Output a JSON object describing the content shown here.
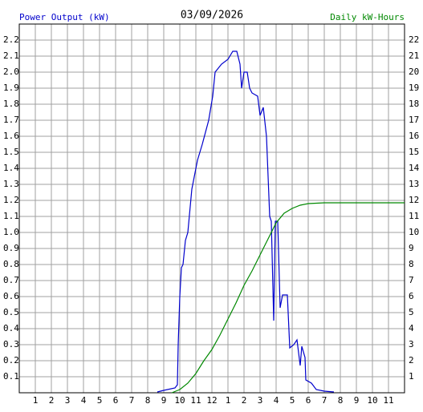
{
  "chart_data": {
    "type": "line",
    "title": "03/09/2026",
    "y_label": "Power Output (kW)",
    "y2_label": "Daily kW-Hours",
    "xlim": [
      0,
      24
    ],
    "xticks": [
      1,
      2,
      3,
      4,
      5,
      6,
      7,
      8,
      9,
      10,
      11,
      12,
      {
        "value": 13,
        "label": "1"
      },
      {
        "value": 14,
        "label": "2"
      },
      {
        "value": 15,
        "label": "3"
      },
      {
        "value": 16,
        "label": "4"
      },
      {
        "value": 17,
        "label": "5"
      },
      {
        "value": 18,
        "label": "6"
      },
      {
        "value": 19,
        "label": "7"
      },
      {
        "value": 20,
        "label": "8"
      },
      {
        "value": 21,
        "label": "9"
      },
      {
        "value": 22,
        "label": "10"
      },
      {
        "value": 23,
        "label": "11"
      }
    ],
    "ylim": [
      0,
      2.3
    ],
    "yticks": [
      0.1,
      0.2,
      0.3,
      0.4,
      0.5,
      0.6,
      0.7,
      0.8,
      0.9,
      {
        "value": 1.0,
        "label": "1.0"
      },
      1.1,
      1.2,
      1.3,
      1.4,
      1.5,
      1.6,
      1.7,
      1.8,
      1.9,
      {
        "value": 2.0,
        "label": "2.0"
      },
      2.1,
      2.2
    ],
    "y2lim": [
      0,
      23
    ],
    "y2ticks": [
      1,
      2,
      3,
      4,
      5,
      6,
      7,
      8,
      9,
      10,
      11,
      12,
      13,
      14,
      15,
      16,
      17,
      18,
      19,
      20,
      21,
      22
    ],
    "grid": true,
    "series": [
      {
        "name": "Power Output (kW)",
        "color": "#0000cc",
        "x": [
          8.6,
          9.0,
          9.7,
          9.85,
          9.9,
          10.0,
          10.1,
          10.2,
          10.35,
          10.5,
          10.75,
          11.1,
          11.4,
          11.8,
          12.05,
          12.2,
          12.6,
          13.0,
          13.3,
          13.55,
          13.75,
          13.85,
          14.0,
          14.2,
          14.35,
          14.5,
          14.85,
          15.0,
          15.2,
          15.4,
          15.6,
          15.7,
          15.85,
          15.95,
          16.1,
          16.25,
          16.4,
          16.7,
          16.85,
          17.1,
          17.3,
          17.5,
          17.6,
          17.8,
          17.85,
          18.2,
          18.5,
          19.0,
          19.6
        ],
        "values": [
          0.005,
          0.015,
          0.03,
          0.05,
          0.3,
          0.6,
          0.78,
          0.8,
          0.95,
          1.0,
          1.27,
          1.45,
          1.55,
          1.7,
          1.85,
          2.0,
          2.05,
          2.08,
          2.13,
          2.13,
          2.05,
          1.9,
          2.0,
          2.0,
          1.9,
          1.87,
          1.85,
          1.73,
          1.78,
          1.6,
          1.1,
          1.07,
          0.45,
          1.07,
          1.07,
          0.53,
          0.61,
          0.61,
          0.28,
          0.3,
          0.33,
          0.17,
          0.29,
          0.22,
          0.08,
          0.06,
          0.02,
          0.01,
          0.005
        ]
      },
      {
        "name": "Daily kW-Hours",
        "color": "#008800",
        "axis": "y2",
        "x": [
          9.5,
          10.0,
          10.5,
          11.0,
          11.5,
          12.0,
          12.5,
          13.0,
          13.5,
          14.0,
          14.5,
          15.0,
          15.5,
          16.0,
          16.5,
          17.0,
          17.5,
          18.0,
          19.0,
          24.0
        ],
        "values": [
          0,
          0.2,
          0.6,
          1.2,
          2.0,
          2.7,
          3.6,
          4.6,
          5.6,
          6.7,
          7.6,
          8.6,
          9.6,
          10.6,
          11.2,
          11.5,
          11.7,
          11.8,
          11.85,
          11.85
        ]
      }
    ]
  }
}
